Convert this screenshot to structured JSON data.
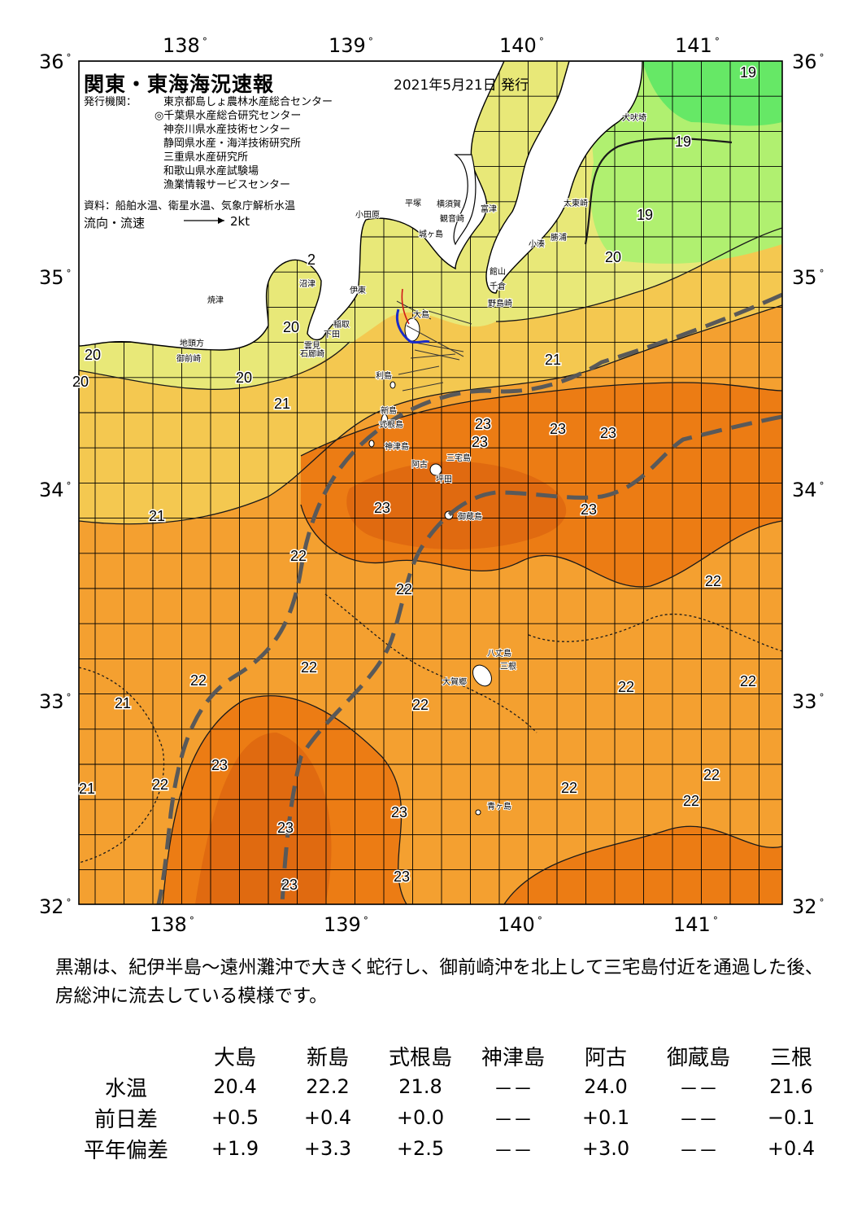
{
  "header": {
    "title": "関東・東海海況速報",
    "date": "2021年5月21日 発行",
    "publisher_label": "発行機関：",
    "publishers": [
      "東京都島しょ農林水産総合センター",
      "◎千葉県水産総合研究センター",
      "神奈川県水産技術センター",
      "静岡県水産・海洋技術研究所",
      "三重県水産研究所",
      "和歌山県水産試験場",
      "漁業情報サービスセンター"
    ],
    "sources": "資料：船舶水温、衛星水温、気象庁解析水温",
    "legend_label": "流向・流速",
    "legend_scale": "2kt"
  },
  "axes": {
    "lon_labels": [
      "138",
      "139",
      "140",
      "141"
    ],
    "lat_labels": [
      "36",
      "35",
      "34",
      "33",
      "32"
    ],
    "degree_mark": "°"
  },
  "colors": {
    "t19": "#66e866",
    "t19b": "#b0f070",
    "t20": "#e8e878",
    "t21": "#f4c850",
    "t22": "#f4a030",
    "t23": "#ec7c14",
    "t24": "#e06a10",
    "land": "#ffffff",
    "kuroshio": "#595959",
    "grid": "#000000"
  },
  "isotherm_labels": [
    {
      "text": "19"
    },
    {
      "text": "19"
    },
    {
      "text": "19"
    },
    {
      "text": "20"
    },
    {
      "text": "20"
    },
    {
      "text": "20"
    },
    {
      "text": "20"
    },
    {
      "text": "20"
    },
    {
      "text": "21"
    },
    {
      "text": "21"
    },
    {
      "text": "21"
    },
    {
      "text": "21"
    },
    {
      "text": "21"
    },
    {
      "text": "22"
    },
    {
      "text": "22"
    },
    {
      "text": "22"
    },
    {
      "text": "22"
    },
    {
      "text": "22"
    },
    {
      "text": "22"
    },
    {
      "text": "22"
    },
    {
      "text": "22"
    },
    {
      "text": "22"
    },
    {
      "text": "22"
    },
    {
      "text": "22"
    },
    {
      "text": "22"
    },
    {
      "text": "23"
    },
    {
      "text": "23"
    },
    {
      "text": "23"
    },
    {
      "text": "23"
    },
    {
      "text": "23"
    },
    {
      "text": "23"
    },
    {
      "text": "23"
    },
    {
      "text": "23"
    },
    {
      "text": "23"
    },
    {
      "text": "23"
    },
    {
      "text": "23"
    },
    {
      "text": "2"
    }
  ],
  "place_labels": [
    "犬吠埼",
    "太東崎",
    "勝浦",
    "小湊",
    "館山",
    "千倉",
    "野島崎",
    "富津",
    "横須賀",
    "観音崎",
    "平塚",
    "小田原",
    "城ヶ島",
    "伊東",
    "稲取",
    "下田",
    "石廊崎",
    "沼津",
    "焼津",
    "御前崎",
    "地頭方",
    "雲見",
    "大島",
    "利島",
    "新島",
    "式根島",
    "神津島",
    "三宅島",
    "阿古",
    "坪田",
    "御蔵島",
    "八丈島",
    "三根",
    "大賀郷",
    "青ヶ島"
  ],
  "summary": "黒潮は、紀伊半島～遠州灘沖で大きく蛇行し、御前崎沖を北上して三宅島付近を通過した後、房総沖に流去している模様です。",
  "table": {
    "stations": [
      "大島",
      "新島",
      "式根島",
      "神津島",
      "阿古",
      "御蔵島",
      "三根"
    ],
    "rows": [
      {
        "label": "水温",
        "values": [
          "20.4",
          "22.2",
          "21.8",
          "－－",
          "24.0",
          "－－",
          "21.6"
        ]
      },
      {
        "label": "前日差",
        "values": [
          "+0.5",
          "+0.4",
          "+0.0",
          "－－",
          "+0.1",
          "－－",
          "−0.1"
        ]
      },
      {
        "label": "平年偏差",
        "values": [
          "+1.9",
          "+3.3",
          "+2.5",
          "－－",
          "+3.0",
          "－－",
          "+0.4"
        ]
      }
    ]
  }
}
